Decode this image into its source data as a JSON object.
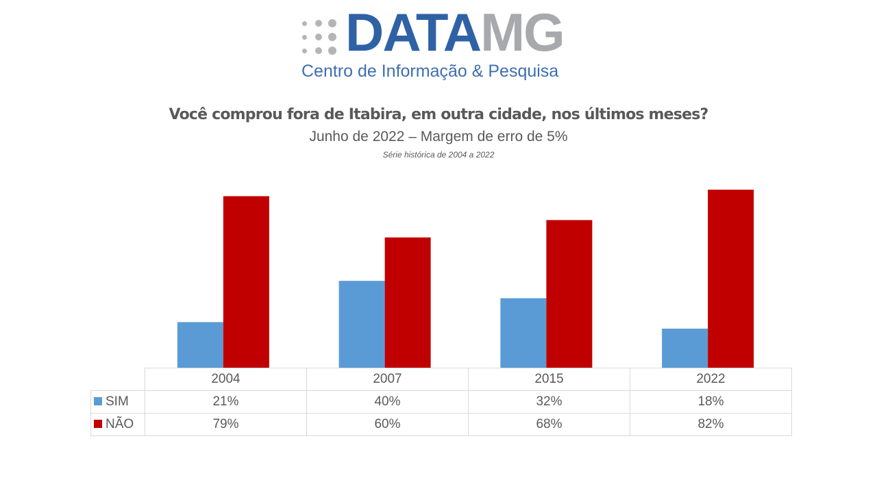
{
  "logo": {
    "brand_primary": "DATA",
    "brand_secondary": "MG",
    "tagline": "Centro de Informação & Pesquisa"
  },
  "header": {
    "title": "Você comprou fora de Itabira, em outra cidade, nos últimos meses?",
    "subtitle": "Junho de 2022 – Margem de erro de 5%",
    "note": "Série histórica de 2004 a 2022"
  },
  "colors": {
    "sim": "#5b9bd5",
    "nao": "#c00000"
  },
  "chart_data": {
    "type": "bar",
    "title": "Você comprou fora de Itabira, em outra cidade, nos últimos meses?",
    "subtitle": "Junho de 2022 – Margem de erro de 5%",
    "note": "Série histórica de 2004 a 2022",
    "categories": [
      "2004",
      "2007",
      "2015",
      "2022"
    ],
    "series": [
      {
        "name": "SIM",
        "values": [
          21,
          40,
          32,
          18
        ],
        "labels": [
          "21%",
          "40%",
          "32%",
          "18%"
        ],
        "color": "#5b9bd5"
      },
      {
        "name": "NÃO",
        "values": [
          79,
          60,
          68,
          82
        ],
        "labels": [
          "79%",
          "60%",
          "68%",
          "82%"
        ],
        "color": "#c00000"
      }
    ],
    "xlabel": "",
    "ylabel": "",
    "ylim": [
      0,
      100
    ],
    "grid": false,
    "legend": "data-table-left",
    "data_table": true
  }
}
